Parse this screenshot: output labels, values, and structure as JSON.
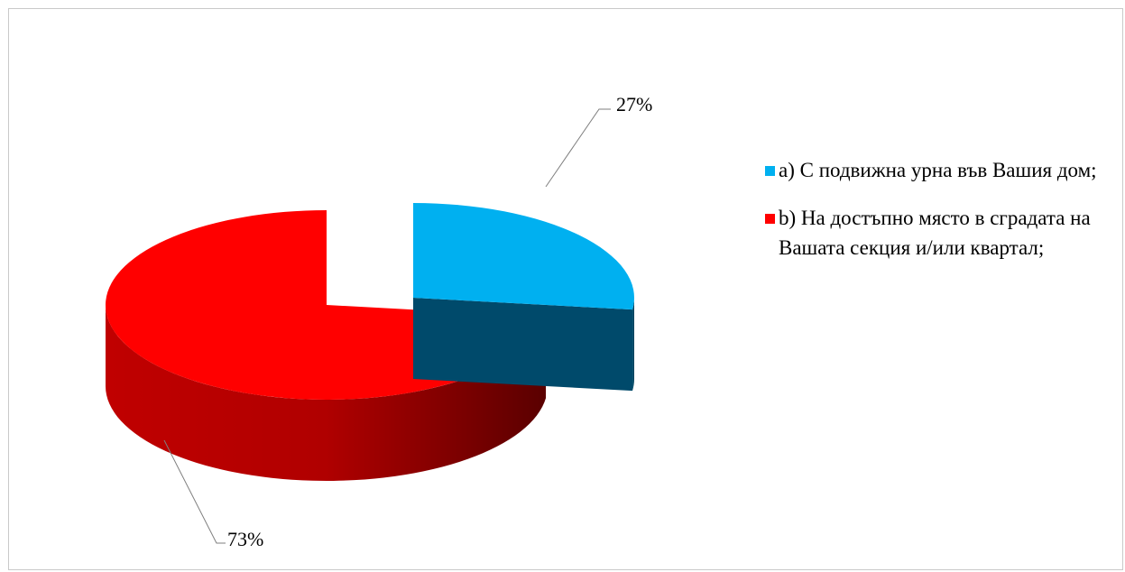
{
  "chart_data": {
    "type": "pie",
    "slices": [
      {
        "label": "a)  С подвижна урна във Вашия дом;",
        "value": 27,
        "data_label": "27%",
        "color": "#00b0f0",
        "side_color": "#004a6b"
      },
      {
        "label": "b)    На достъпно място в сградата на Вашата секция и/или квартал;",
        "value": 73,
        "data_label": "73%",
        "color": "#ff0000",
        "side_color": "#9e0000"
      }
    ],
    "exploded_slice": 0,
    "legend_position": "right",
    "three_d": true
  }
}
